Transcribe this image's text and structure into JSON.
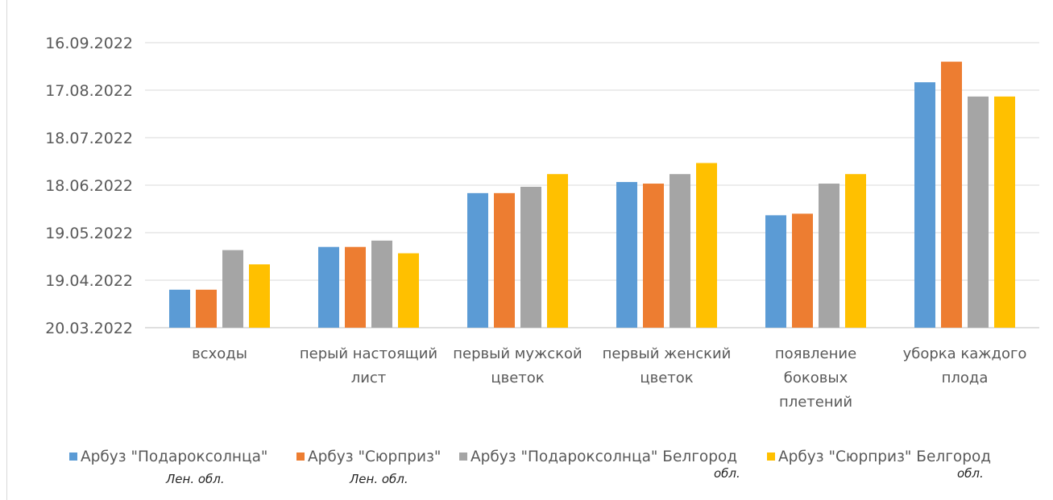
{
  "chart_data": {
    "type": "bar",
    "categories": [
      [
        "всходы"
      ],
      [
        "перый настоящий",
        "лист"
      ],
      [
        "первый мужской",
        "цветок"
      ],
      [
        "первый женский",
        "цветок"
      ],
      [
        "появление",
        "боковых",
        "плетений"
      ],
      [
        "уборка каждого",
        "плода"
      ]
    ],
    "y_ticks": [
      "16.09.2022",
      "17.08.2022",
      "18.07.2022",
      "18.06.2022",
      "19.05.2022",
      "19.04.2022",
      "20.03.2022"
    ],
    "ylim": [
      "2022-03-20",
      "2022-09-16"
    ],
    "grid": true,
    "legend_position": "bottom",
    "series": [
      {
        "name": "Арбуз \"Подароксолнца\"",
        "subtitle": "Лен. обл.",
        "color": "#5B9BD5",
        "values": [
          "2022-04-13",
          "2022-05-10",
          "2022-06-13",
          "2022-06-20",
          "2022-05-30",
          "2022-08-22"
        ]
      },
      {
        "name": "Арбуз \"Сюрприз\"",
        "subtitle": "Лен. обл.",
        "color": "#ED7D31",
        "values": [
          "2022-04-13",
          "2022-05-10",
          "2022-06-13",
          "2022-06-19",
          "2022-05-31",
          "2022-09-04"
        ]
      },
      {
        "name": "Арбуз \"Подароксолнца\" Белгород",
        "subtitle": "обл.",
        "color": "#A5A5A5",
        "values": [
          "2022-05-08",
          "2022-05-14",
          "2022-06-17",
          "2022-06-25",
          "2022-06-19",
          "2022-08-13"
        ]
      },
      {
        "name": "Арбуз \"Сюрприз\" Белгород",
        "subtitle": "обл.",
        "color": "#FFC000",
        "values": [
          "2022-04-29",
          "2022-05-06",
          "2022-06-25",
          "2022-07-02",
          "2022-06-25",
          "2022-08-13"
        ]
      }
    ]
  }
}
